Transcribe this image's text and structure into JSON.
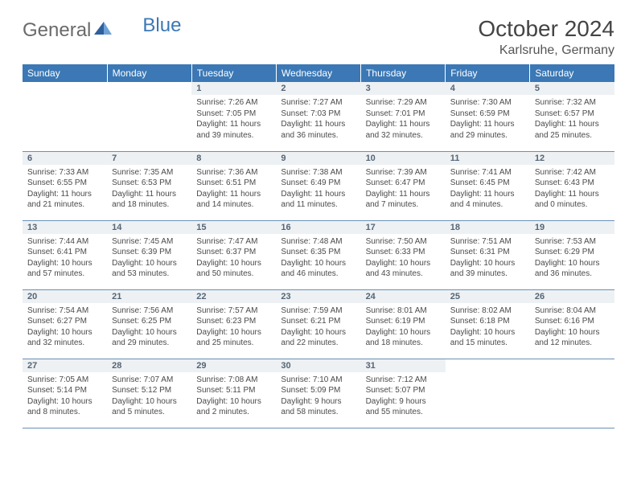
{
  "brand": {
    "part1": "General",
    "part2": "Blue"
  },
  "title": "October 2024",
  "location": "Karlsruhe, Germany",
  "colors": {
    "header_bg": "#3b78b5",
    "header_text": "#ffffff",
    "daynum_bg": "#eef1f3",
    "daynum_text": "#546576",
    "body_text": "#4a4a4a",
    "row_border": "#6a91b5",
    "background": "#ffffff"
  },
  "weekdays": [
    "Sunday",
    "Monday",
    "Tuesday",
    "Wednesday",
    "Thursday",
    "Friday",
    "Saturday"
  ],
  "weeks": [
    [
      {
        "day": "",
        "sunrise": "",
        "sunset": "",
        "daylight": ""
      },
      {
        "day": "",
        "sunrise": "",
        "sunset": "",
        "daylight": ""
      },
      {
        "day": "1",
        "sunrise": "Sunrise: 7:26 AM",
        "sunset": "Sunset: 7:05 PM",
        "daylight": "Daylight: 11 hours and 39 minutes."
      },
      {
        "day": "2",
        "sunrise": "Sunrise: 7:27 AM",
        "sunset": "Sunset: 7:03 PM",
        "daylight": "Daylight: 11 hours and 36 minutes."
      },
      {
        "day": "3",
        "sunrise": "Sunrise: 7:29 AM",
        "sunset": "Sunset: 7:01 PM",
        "daylight": "Daylight: 11 hours and 32 minutes."
      },
      {
        "day": "4",
        "sunrise": "Sunrise: 7:30 AM",
        "sunset": "Sunset: 6:59 PM",
        "daylight": "Daylight: 11 hours and 29 minutes."
      },
      {
        "day": "5",
        "sunrise": "Sunrise: 7:32 AM",
        "sunset": "Sunset: 6:57 PM",
        "daylight": "Daylight: 11 hours and 25 minutes."
      }
    ],
    [
      {
        "day": "6",
        "sunrise": "Sunrise: 7:33 AM",
        "sunset": "Sunset: 6:55 PM",
        "daylight": "Daylight: 11 hours and 21 minutes."
      },
      {
        "day": "7",
        "sunrise": "Sunrise: 7:35 AM",
        "sunset": "Sunset: 6:53 PM",
        "daylight": "Daylight: 11 hours and 18 minutes."
      },
      {
        "day": "8",
        "sunrise": "Sunrise: 7:36 AM",
        "sunset": "Sunset: 6:51 PM",
        "daylight": "Daylight: 11 hours and 14 minutes."
      },
      {
        "day": "9",
        "sunrise": "Sunrise: 7:38 AM",
        "sunset": "Sunset: 6:49 PM",
        "daylight": "Daylight: 11 hours and 11 minutes."
      },
      {
        "day": "10",
        "sunrise": "Sunrise: 7:39 AM",
        "sunset": "Sunset: 6:47 PM",
        "daylight": "Daylight: 11 hours and 7 minutes."
      },
      {
        "day": "11",
        "sunrise": "Sunrise: 7:41 AM",
        "sunset": "Sunset: 6:45 PM",
        "daylight": "Daylight: 11 hours and 4 minutes."
      },
      {
        "day": "12",
        "sunrise": "Sunrise: 7:42 AM",
        "sunset": "Sunset: 6:43 PM",
        "daylight": "Daylight: 11 hours and 0 minutes."
      }
    ],
    [
      {
        "day": "13",
        "sunrise": "Sunrise: 7:44 AM",
        "sunset": "Sunset: 6:41 PM",
        "daylight": "Daylight: 10 hours and 57 minutes."
      },
      {
        "day": "14",
        "sunrise": "Sunrise: 7:45 AM",
        "sunset": "Sunset: 6:39 PM",
        "daylight": "Daylight: 10 hours and 53 minutes."
      },
      {
        "day": "15",
        "sunrise": "Sunrise: 7:47 AM",
        "sunset": "Sunset: 6:37 PM",
        "daylight": "Daylight: 10 hours and 50 minutes."
      },
      {
        "day": "16",
        "sunrise": "Sunrise: 7:48 AM",
        "sunset": "Sunset: 6:35 PM",
        "daylight": "Daylight: 10 hours and 46 minutes."
      },
      {
        "day": "17",
        "sunrise": "Sunrise: 7:50 AM",
        "sunset": "Sunset: 6:33 PM",
        "daylight": "Daylight: 10 hours and 43 minutes."
      },
      {
        "day": "18",
        "sunrise": "Sunrise: 7:51 AM",
        "sunset": "Sunset: 6:31 PM",
        "daylight": "Daylight: 10 hours and 39 minutes."
      },
      {
        "day": "19",
        "sunrise": "Sunrise: 7:53 AM",
        "sunset": "Sunset: 6:29 PM",
        "daylight": "Daylight: 10 hours and 36 minutes."
      }
    ],
    [
      {
        "day": "20",
        "sunrise": "Sunrise: 7:54 AM",
        "sunset": "Sunset: 6:27 PM",
        "daylight": "Daylight: 10 hours and 32 minutes."
      },
      {
        "day": "21",
        "sunrise": "Sunrise: 7:56 AM",
        "sunset": "Sunset: 6:25 PM",
        "daylight": "Daylight: 10 hours and 29 minutes."
      },
      {
        "day": "22",
        "sunrise": "Sunrise: 7:57 AM",
        "sunset": "Sunset: 6:23 PM",
        "daylight": "Daylight: 10 hours and 25 minutes."
      },
      {
        "day": "23",
        "sunrise": "Sunrise: 7:59 AM",
        "sunset": "Sunset: 6:21 PM",
        "daylight": "Daylight: 10 hours and 22 minutes."
      },
      {
        "day": "24",
        "sunrise": "Sunrise: 8:01 AM",
        "sunset": "Sunset: 6:19 PM",
        "daylight": "Daylight: 10 hours and 18 minutes."
      },
      {
        "day": "25",
        "sunrise": "Sunrise: 8:02 AM",
        "sunset": "Sunset: 6:18 PM",
        "daylight": "Daylight: 10 hours and 15 minutes."
      },
      {
        "day": "26",
        "sunrise": "Sunrise: 8:04 AM",
        "sunset": "Sunset: 6:16 PM",
        "daylight": "Daylight: 10 hours and 12 minutes."
      }
    ],
    [
      {
        "day": "27",
        "sunrise": "Sunrise: 7:05 AM",
        "sunset": "Sunset: 5:14 PM",
        "daylight": "Daylight: 10 hours and 8 minutes."
      },
      {
        "day": "28",
        "sunrise": "Sunrise: 7:07 AM",
        "sunset": "Sunset: 5:12 PM",
        "daylight": "Daylight: 10 hours and 5 minutes."
      },
      {
        "day": "29",
        "sunrise": "Sunrise: 7:08 AM",
        "sunset": "Sunset: 5:11 PM",
        "daylight": "Daylight: 10 hours and 2 minutes."
      },
      {
        "day": "30",
        "sunrise": "Sunrise: 7:10 AM",
        "sunset": "Sunset: 5:09 PM",
        "daylight": "Daylight: 9 hours and 58 minutes."
      },
      {
        "day": "31",
        "sunrise": "Sunrise: 7:12 AM",
        "sunset": "Sunset: 5:07 PM",
        "daylight": "Daylight: 9 hours and 55 minutes."
      },
      {
        "day": "",
        "sunrise": "",
        "sunset": "",
        "daylight": ""
      },
      {
        "day": "",
        "sunrise": "",
        "sunset": "",
        "daylight": ""
      }
    ]
  ]
}
